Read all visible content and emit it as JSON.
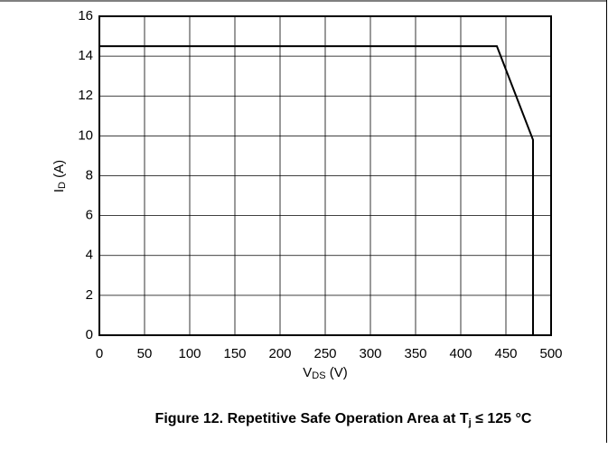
{
  "chart_data": {
    "type": "line",
    "title": {
      "main": "Figure 12. Repetitive Safe Operation Area at T",
      "sub": "j",
      "rest": " ≤ 125 °C"
    },
    "xlabel": {
      "main": "V",
      "sub": "DS",
      "rest": " (V)"
    },
    "ylabel": {
      "main": "I",
      "sub": "D",
      "rest": " (A)"
    },
    "x": [
      0,
      440,
      480,
      480
    ],
    "series": [
      {
        "color": "#000000",
        "values": [
          14.5,
          14.5,
          9.8,
          0
        ]
      }
    ],
    "xlim": [
      0,
      500
    ],
    "xticks": [
      0,
      50,
      100,
      150,
      200,
      250,
      300,
      350,
      400,
      450,
      500
    ],
    "ylim": [
      0,
      16
    ],
    "yticks": [
      0,
      2,
      4,
      6,
      8,
      10,
      12,
      14,
      16
    ],
    "grid": true
  }
}
